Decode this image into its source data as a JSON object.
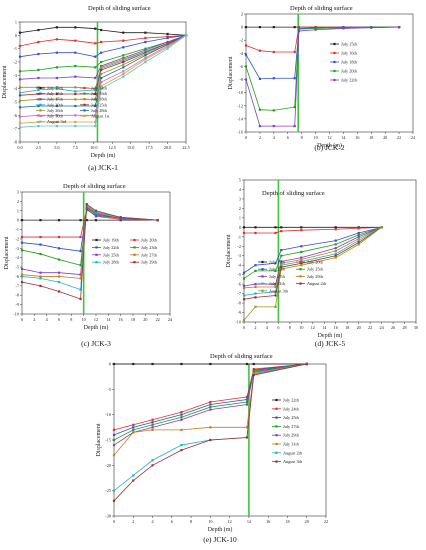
{
  "chart_data": [
    {
      "id": "jck1",
      "type": "line",
      "caption": "(a) JCK-1",
      "annotation": "Depth of sliding surface",
      "xlabel": "Depth (m)",
      "ylabel": "Displacement",
      "xlim": [
        0,
        22.5
      ],
      "ylim": [
        -8,
        1
      ],
      "xticks": [
        "0.0",
        "2.5",
        "5.0",
        "7.5",
        "10.0",
        "12.5",
        "15.0",
        "17.5",
        "20.0",
        "22.5"
      ],
      "yticks": [
        "1",
        "0",
        "-1",
        "-2",
        "-3",
        "-4",
        "-5",
        "-6",
        "-7",
        "-8"
      ],
      "sliding_depth": 10.5,
      "legend_position": "lower-left",
      "legend_columns": 2,
      "series": [
        {
          "name": "July 13th",
          "color": "#222222",
          "values": [
            0.2,
            0.4,
            0.6,
            0.6,
            0.5,
            0.4,
            0.2,
            0.2,
            0.1,
            0.0
          ]
        },
        {
          "name": "July 14th",
          "color": "#e03030",
          "values": [
            -0.8,
            -0.5,
            -0.3,
            -0.4,
            -0.6,
            -0.5,
            -0.4,
            -0.2,
            -0.1,
            0.0
          ]
        },
        {
          "name": "July 15th",
          "color": "#3050d0",
          "values": [
            -1.6,
            -1.4,
            -1.3,
            -1.3,
            -1.6,
            -1.3,
            -0.9,
            -0.5,
            -0.2,
            0.0
          ]
        },
        {
          "name": "July 16th",
          "color": "#20a020",
          "values": [
            -2.7,
            -2.6,
            -2.4,
            -2.3,
            -2.4,
            -2.0,
            -1.5,
            -1.0,
            -0.5,
            0.0
          ]
        },
        {
          "name": "July 17th",
          "color": "#8040c0",
          "values": [
            -3.3,
            -3.2,
            -3.2,
            -3.1,
            -3.2,
            -2.3,
            -1.7,
            -1.1,
            -0.5,
            0.0
          ]
        },
        {
          "name": "July 18th",
          "color": "#c08020",
          "values": [
            -3.9,
            -3.9,
            -3.9,
            -3.9,
            -4.0,
            -2.4,
            -1.8,
            -1.2,
            -0.6,
            0.0
          ]
        },
        {
          "name": "July 20th",
          "color": "#20b0d0",
          "values": [
            -4.3,
            -4.1,
            -4.0,
            -4.2,
            -4.1,
            -2.5,
            -1.9,
            -1.2,
            -0.6,
            0.0
          ]
        },
        {
          "name": "July 25th",
          "color": "#a03030",
          "values": [
            -4.5,
            -4.4,
            -4.4,
            -4.4,
            -4.4,
            -2.6,
            -2.0,
            -1.3,
            -0.6,
            0.0
          ]
        },
        {
          "name": "July 26th",
          "color": "#9a9a20",
          "values": [
            -4.9,
            -4.8,
            -4.8,
            -4.8,
            -4.8,
            -2.9,
            -2.2,
            -1.4,
            -0.7,
            0.0
          ]
        },
        {
          "name": "July 28th",
          "color": "#2070a0",
          "values": [
            -5.4,
            -5.3,
            -5.3,
            -5.3,
            -5.3,
            -3.2,
            -2.4,
            -1.5,
            -0.7,
            0.0
          ]
        },
        {
          "name": "July 30th",
          "color": "#d070b0",
          "values": [
            -6.1,
            -6.0,
            -6.0,
            -6.0,
            -6.0,
            -3.5,
            -2.7,
            -1.7,
            -0.8,
            0.0
          ]
        },
        {
          "name": "August 1st",
          "color": "#e0a030",
          "values": [
            -6.6,
            -6.5,
            -6.5,
            -6.5,
            -6.5,
            -3.8,
            -2.9,
            -1.8,
            -0.9,
            0.0
          ]
        },
        {
          "name": "August 3rd",
          "color": "#60c0e0",
          "values": [
            -6.9,
            -6.8,
            -6.8,
            -6.8,
            -6.8,
            -4.0,
            -3.1,
            -2.0,
            -1.0,
            0.0
          ]
        }
      ],
      "x": [
        0,
        2.5,
        5,
        7.5,
        10.2,
        11,
        14,
        17,
        20,
        22.5
      ]
    },
    {
      "id": "jck2",
      "type": "line",
      "caption": "(b) JCK-2",
      "annotation": "Depth of sliding surface",
      "xlabel": "Depth (m)",
      "ylabel": "Displacement",
      "xlim": [
        0,
        24
      ],
      "ylim": [
        -16,
        2
      ],
      "xticks": [
        "0",
        "2",
        "4",
        "6",
        "8",
        "10",
        "12",
        "14",
        "16",
        "18",
        "20",
        "22",
        "24"
      ],
      "yticks": [
        "2",
        "0",
        "-2",
        "-4",
        "-6",
        "-8",
        "-10",
        "-12",
        "-14",
        "-16"
      ],
      "sliding_depth": 7.5,
      "legend_position": "right",
      "legend_columns": 1,
      "series": [
        {
          "name": "July 15th",
          "color": "#222222",
          "values": [
            0.0,
            0.0,
            0.0,
            0.0,
            0.0,
            0.0,
            0.0,
            0.0,
            0.0
          ]
        },
        {
          "name": "July 16th",
          "color": "#e03030",
          "values": [
            -2.8,
            -3.6,
            -3.8,
            -3.8,
            0.0,
            0.0,
            0.0,
            0.0,
            0.0
          ]
        },
        {
          "name": "July 18th",
          "color": "#3050d0",
          "values": [
            -4.2,
            -7.9,
            -7.8,
            -7.8,
            -0.2,
            -0.1,
            0.0,
            0.0,
            0.0
          ]
        },
        {
          "name": "July 20th",
          "color": "#20a020",
          "values": [
            -6.0,
            -12.6,
            -12.7,
            -12.2,
            -0.3,
            -0.2,
            -0.1,
            0.0,
            0.0
          ]
        },
        {
          "name": "July 22th",
          "color": "#8040c0",
          "values": [
            -8.0,
            -15.1,
            -15.1,
            -15.1,
            -0.6,
            -0.4,
            -0.2,
            -0.1,
            0.0
          ]
        }
      ],
      "x": [
        0,
        2,
        4,
        7,
        7.6,
        10,
        14,
        18,
        22
      ]
    },
    {
      "id": "jck3",
      "type": "line",
      "caption": "(c) JCK-3",
      "annotation": "Depth of sliding surface",
      "xlabel": "Depth (m)",
      "ylabel": "Displacement",
      "xlim": [
        0,
        24
      ],
      "ylim": [
        -10,
        3
      ],
      "xticks": [
        "0",
        "2",
        "4",
        "6",
        "8",
        "10",
        "12",
        "14",
        "16",
        "18",
        "20",
        "22",
        "24"
      ],
      "yticks": [
        "3",
        "2",
        "1",
        "0",
        "-1",
        "-2",
        "-3",
        "-4",
        "-5",
        "-6",
        "-7",
        "-8",
        "-9",
        "-10"
      ],
      "sliding_depth": 10,
      "legend_position": "lower-right",
      "legend_columns": 2,
      "series": [
        {
          "name": "July 19th",
          "color": "#222222",
          "values": [
            0.0,
            0.0,
            0.0,
            0.0,
            0.0,
            0.0,
            0.0,
            0.0
          ]
        },
        {
          "name": "July 20th",
          "color": "#e03030",
          "values": [
            -1.8,
            -1.8,
            -1.8,
            -1.8,
            1.2,
            0.4,
            0.1,
            0.0
          ]
        },
        {
          "name": "July 22th",
          "color": "#3050d0",
          "values": [
            -2.4,
            -2.6,
            -3.0,
            -3.3,
            1.1,
            0.5,
            0.2,
            0.0
          ]
        },
        {
          "name": "July 23th",
          "color": "#20a020",
          "values": [
            -3.2,
            -3.6,
            -4.2,
            -4.8,
            1.3,
            0.6,
            0.2,
            0.0
          ]
        },
        {
          "name": "July 25th",
          "color": "#8040c0",
          "values": [
            -5.2,
            -5.6,
            -5.6,
            -5.8,
            1.4,
            0.7,
            0.2,
            0.0
          ]
        },
        {
          "name": "July 27th",
          "color": "#c08020",
          "values": [
            -5.8,
            -6.0,
            -6.0,
            -6.2,
            1.5,
            0.8,
            0.3,
            0.0
          ]
        },
        {
          "name": "July 28th",
          "color": "#20b0d0",
          "values": [
            -6.0,
            -6.2,
            -6.6,
            -7.4,
            1.6,
            0.9,
            0.3,
            0.0
          ]
        },
        {
          "name": "July 29th",
          "color": "#a03030",
          "values": [
            -6.6,
            -7.0,
            -7.6,
            -8.4,
            1.7,
            1.0,
            0.3,
            0.0
          ]
        }
      ],
      "x": [
        0,
        3,
        6,
        9.5,
        10.5,
        12,
        16,
        22
      ]
    },
    {
      "id": "jck5",
      "type": "line",
      "caption": "(d) JCK-5",
      "annotation": "Depth of sliding surface",
      "xlabel": "Depth (m)",
      "ylabel": "Displacement",
      "xlim": [
        0,
        30
      ],
      "ylim": [
        -10,
        5
      ],
      "xticks": [
        "0",
        "2",
        "4",
        "6",
        "8",
        "10",
        "12",
        "14",
        "16",
        "18",
        "20",
        "22",
        "24",
        "26",
        "28",
        "30"
      ],
      "yticks": [
        "5",
        "4",
        "3",
        "2",
        "1",
        "0",
        "-1",
        "-2",
        "-3",
        "-4",
        "-5",
        "-6",
        "-7",
        "-8",
        "-9",
        "-10"
      ],
      "sliding_depth": 6,
      "legend_position": "lower-left",
      "legend_columns": 2,
      "series": [
        {
          "name": "July 19th",
          "color": "#222222",
          "values": [
            0.0,
            0.0,
            0.0,
            0.0,
            0.0,
            0.0,
            0.0,
            0.0
          ]
        },
        {
          "name": "July 20th",
          "color": "#e03030",
          "values": [
            -0.6,
            -0.6,
            -0.6,
            -0.4,
            -0.3,
            -0.2,
            -0.1,
            0.0
          ]
        },
        {
          "name": "July 23th",
          "color": "#3050d0",
          "values": [
            -4.8,
            -4.0,
            -3.8,
            -2.4,
            -2.0,
            -1.4,
            -0.6,
            0.0
          ]
        },
        {
          "name": "July 25th",
          "color": "#20a020",
          "values": [
            -5.4,
            -4.6,
            -4.6,
            -3.0,
            -2.6,
            -1.8,
            -0.8,
            0.0
          ]
        },
        {
          "name": "July 27th",
          "color": "#8040c0",
          "values": [
            -6.2,
            -6.0,
            -6.0,
            -3.6,
            -3.2,
            -2.2,
            -1.0,
            0.0
          ]
        },
        {
          "name": "July 29th",
          "color": "#c08020",
          "values": [
            -6.4,
            -6.3,
            -6.3,
            -3.8,
            -3.4,
            -2.5,
            -1.2,
            0.0
          ]
        },
        {
          "name": "July 31th",
          "color": "#20b0d0",
          "values": [
            -7.2,
            -7.0,
            -6.8,
            -4.0,
            -3.6,
            -2.8,
            -1.4,
            0.0
          ]
        },
        {
          "name": "August 2th",
          "color": "#a03030",
          "values": [
            -7.6,
            -7.4,
            -7.2,
            -4.2,
            -3.8,
            -3.0,
            -1.6,
            0.0
          ]
        },
        {
          "name": "August 3th",
          "color": "#9a9a20",
          "values": [
            -9.8,
            -8.4,
            -8.4,
            -4.4,
            -4.0,
            -3.2,
            -1.8,
            0.0
          ]
        }
      ],
      "x": [
        0,
        2,
        5.5,
        6.5,
        10,
        16,
        20,
        24
      ]
    },
    {
      "id": "jck10",
      "type": "line",
      "caption": "(e) JCK-10",
      "annotation": "Depth of sliding surface",
      "xlabel": "Depth (m)",
      "ylabel": "Displacement",
      "xlim": [
        0,
        22
      ],
      "ylim": [
        -30,
        0
      ],
      "xticks": [
        "0",
        "2",
        "4",
        "6",
        "8",
        "10",
        "12",
        "14",
        "16",
        "18",
        "20",
        "22"
      ],
      "yticks": [
        "0",
        "-5",
        "-10",
        "-15",
        "-20",
        "-25",
        "-30"
      ],
      "sliding_depth": 14,
      "legend_position": "right",
      "legend_columns": 1,
      "series": [
        {
          "name": "July 22th",
          "color": "#222222",
          "values": [
            0.0,
            0.0,
            0.0,
            0.0,
            0.0,
            0.0,
            0.0,
            0.0
          ]
        },
        {
          "name": "July 24th",
          "color": "#e03030",
          "values": [
            -13.0,
            -12.0,
            -11.0,
            -9.5,
            -7.5,
            -6.5,
            -1.0,
            0.0
          ]
        },
        {
          "name": "July 25th",
          "color": "#3050d0",
          "values": [
            -14.0,
            -12.5,
            -11.5,
            -10.0,
            -8.0,
            -7.0,
            -1.2,
            0.0
          ]
        },
        {
          "name": "July 27th",
          "color": "#20a020",
          "values": [
            -15.0,
            -13.0,
            -12.0,
            -10.5,
            -8.5,
            -7.5,
            -1.4,
            0.0
          ]
        },
        {
          "name": "July 29th",
          "color": "#8040c0",
          "values": [
            -16.0,
            -13.5,
            -12.5,
            -11.0,
            -9.0,
            -8.0,
            -1.6,
            0.0
          ]
        },
        {
          "name": "July 31th",
          "color": "#c08020",
          "values": [
            -18.0,
            -13.5,
            -13.0,
            -13.0,
            -12.5,
            -12.5,
            -1.8,
            0.0
          ]
        },
        {
          "name": "August 2th",
          "color": "#20b0d0",
          "values": [
            -25.0,
            -22.0,
            -19.0,
            -16.0,
            -15.0,
            -14.5,
            -2.0,
            0.0
          ]
        },
        {
          "name": "August 3th",
          "color": "#a03030",
          "values": [
            -27.0,
            -23.0,
            -20.0,
            -17.0,
            -15.0,
            -14.5,
            -2.2,
            0.0
          ]
        }
      ],
      "x": [
        0,
        2,
        4,
        7,
        10,
        13.8,
        14.5,
        20
      ]
    }
  ]
}
